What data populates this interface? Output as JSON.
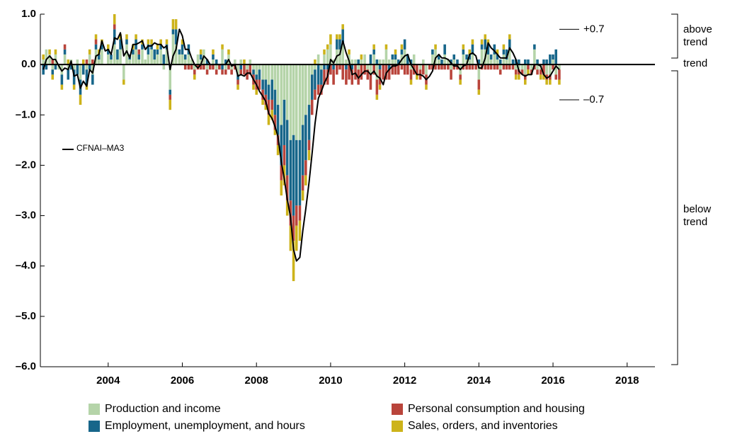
{
  "chart_data": {
    "type": "bar",
    "xlim": [
      2002.17,
      2018.75
    ],
    "xticks": [
      2004,
      2006,
      2008,
      2010,
      2012,
      2014,
      2016,
      2018
    ],
    "ylim": [
      -6,
      1
    ],
    "yticks": [
      {
        "value": 1,
        "label": "1.0"
      },
      {
        "value": 0,
        "label": "0.0"
      },
      {
        "value": -1,
        "label": "–1.0"
      },
      {
        "value": -2,
        "label": "–2.0"
      },
      {
        "value": -3,
        "label": "–3.0"
      },
      {
        "value": -4,
        "label": "–4.0"
      },
      {
        "value": -5,
        "label": "–5.0"
      },
      {
        "value": -6,
        "label": "–6.0"
      }
    ],
    "reference_lines": [
      {
        "value": 0.7,
        "label": "+0.7"
      },
      {
        "value": -0.7,
        "label": "–0.7"
      }
    ],
    "zones": [
      "above trend",
      "trend",
      "below trend"
    ],
    "x": [
      2002.25,
      2002.33,
      2002.42,
      2002.5,
      2002.58,
      2002.67,
      2002.75,
      2002.83,
      2002.92,
      2003,
      2003.08,
      2003.17,
      2003.25,
      2003.33,
      2003.42,
      2003.5,
      2003.58,
      2003.67,
      2003.75,
      2003.83,
      2003.92,
      2004,
      2004.08,
      2004.17,
      2004.25,
      2004.33,
      2004.42,
      2004.5,
      2004.58,
      2004.67,
      2004.75,
      2004.83,
      2004.92,
      2005,
      2005.08,
      2005.17,
      2005.25,
      2005.33,
      2005.42,
      2005.5,
      2005.58,
      2005.67,
      2005.75,
      2005.83,
      2005.92,
      2006,
      2006.08,
      2006.17,
      2006.25,
      2006.33,
      2006.42,
      2006.5,
      2006.58,
      2006.67,
      2006.75,
      2006.83,
      2006.92,
      2007,
      2007.08,
      2007.17,
      2007.25,
      2007.33,
      2007.42,
      2007.5,
      2007.58,
      2007.67,
      2007.75,
      2007.83,
      2007.92,
      2008,
      2008.08,
      2008.17,
      2008.25,
      2008.33,
      2008.42,
      2008.5,
      2008.58,
      2008.67,
      2008.75,
      2008.83,
      2008.92,
      2009,
      2009.08,
      2009.17,
      2009.25,
      2009.33,
      2009.42,
      2009.5,
      2009.58,
      2009.67,
      2009.75,
      2009.83,
      2009.92,
      2010,
      2010.08,
      2010.17,
      2010.25,
      2010.33,
      2010.42,
      2010.5,
      2010.58,
      2010.67,
      2010.75,
      2010.83,
      2010.92,
      2011,
      2011.08,
      2011.17,
      2011.25,
      2011.33,
      2011.42,
      2011.5,
      2011.58,
      2011.67,
      2011.75,
      2011.83,
      2011.92,
      2012,
      2012.08,
      2012.17,
      2012.25,
      2012.33,
      2012.42,
      2012.5,
      2012.58,
      2012.67,
      2012.75,
      2012.83,
      2012.92,
      2013,
      2013.08,
      2013.17,
      2013.25,
      2013.33,
      2013.42,
      2013.5,
      2013.58,
      2013.67,
      2013.75,
      2013.83,
      2013.92,
      2014,
      2014.08,
      2014.17,
      2014.25,
      2014.33,
      2014.42,
      2014.5,
      2014.58,
      2014.67,
      2014.75,
      2014.83,
      2014.92,
      2015,
      2015.08,
      2015.17,
      2015.25,
      2015.33,
      2015.42,
      2015.5,
      2015.58,
      2015.67,
      2015.75,
      2015.83,
      2015.92,
      2016,
      2016.08,
      2016.17
    ],
    "series": [
      {
        "name": "Production and income",
        "color": "#b5d4a9",
        "values": [
          0.1,
          0.3,
          0.2,
          -0.1,
          0.2,
          -0.1,
          -0.2,
          0.2,
          -0.1,
          0.1,
          -0.1,
          0.1,
          -0.3,
          0.0,
          -0.1,
          0.2,
          -0.2,
          0.3,
          0.1,
          0.3,
          0.0,
          0.2,
          0.1,
          0.4,
          0.1,
          0.3,
          -0.3,
          0.4,
          0.1,
          0.2,
          0.3,
          0.1,
          0.3,
          0.1,
          0.2,
          0.3,
          0.1,
          0.2,
          0.3,
          -0.1,
          0.3,
          -0.5,
          0.6,
          0.4,
          0.2,
          0.2,
          0.1,
          0.2,
          0.1,
          -0.1,
          0.2,
          0.1,
          0.3,
          -0.1,
          0.0,
          0.1,
          -0.1,
          0.0,
          0.3,
          -0.1,
          0.2,
          -0.1,
          0.1,
          -0.2,
          0.1,
          0.0,
          -0.1,
          0.1,
          -0.1,
          -0.2,
          -0.1,
          -0.3,
          -0.3,
          -0.4,
          -0.3,
          -0.5,
          -0.8,
          -1.2,
          -0.7,
          -1.1,
          -1.5,
          -1.4,
          -1.5,
          -1.5,
          -1.2,
          -1.0,
          -0.8,
          -0.2,
          -0.1,
          0.2,
          -0.1,
          0.2,
          0.3,
          0.4,
          0.1,
          0.3,
          0.3,
          0.4,
          0.1,
          0.2,
          0.1,
          0.1,
          -0.1,
          0.1,
          0.2,
          -0.1,
          -0.2,
          0.2,
          -0.3,
          0.1,
          0.1,
          0.3,
          0.1,
          0.1,
          0.1,
          0.0,
          0.2,
          0.3,
          0.0,
          -0.1,
          0.2,
          0.0,
          -0.1,
          0.1,
          -0.2,
          0.0,
          0.2,
          0.3,
          0.1,
          0.0,
          0.2,
          0.1,
          -0.1,
          0.1,
          0.0,
          -0.2,
          0.2,
          0.1,
          0.1,
          0.2,
          0.0,
          -0.3,
          0.3,
          0.3,
          0.2,
          0.1,
          0.2,
          0.1,
          -0.1,
          0.2,
          0.1,
          0.3,
          0.0,
          -0.1,
          -0.1,
          -0.1,
          -0.2,
          0.0,
          -0.1,
          0.3,
          -0.1,
          -0.1,
          0.0,
          -0.2,
          -0.2,
          0.1,
          -0.2,
          -0.1
        ]
      },
      {
        "name": "Employment, unemployment, and hours",
        "color": "#17668a",
        "values": [
          -0.2,
          -0.1,
          0.0,
          -0.1,
          -0.1,
          0.0,
          -0.2,
          0.1,
          -0.2,
          -0.1,
          -0.3,
          -0.2,
          -0.3,
          -0.2,
          -0.3,
          -0.1,
          -0.2,
          0.1,
          0.1,
          0.1,
          0.0,
          0.1,
          0.1,
          0.3,
          0.2,
          0.2,
          0.0,
          0.1,
          0.1,
          0.1,
          0.2,
          0.1,
          0.1,
          0.0,
          0.2,
          0.1,
          0.2,
          0.1,
          0.1,
          0.2,
          0.1,
          -0.1,
          0.1,
          0.3,
          0.1,
          0.2,
          0.1,
          0.2,
          0.0,
          0.0,
          0.0,
          0.1,
          0.0,
          0.1,
          0.0,
          0.1,
          0.1,
          0.0,
          -0.1,
          0.1,
          0.0,
          0.0,
          0.0,
          -0.1,
          -0.1,
          0.0,
          0.0,
          0.0,
          -0.1,
          -0.1,
          -0.2,
          -0.2,
          -0.3,
          -0.3,
          -0.4,
          -0.5,
          -0.6,
          -0.8,
          -0.9,
          -1.1,
          -1.2,
          -1.6,
          -1.3,
          -1.3,
          -1.0,
          -0.9,
          -0.7,
          -0.5,
          -0.4,
          -0.4,
          -0.3,
          -0.1,
          -0.1,
          0.0,
          -0.1,
          0.2,
          0.2,
          0.3,
          -0.1,
          0.0,
          -0.1,
          0.0,
          0.1,
          0.0,
          0.0,
          0.0,
          0.2,
          0.1,
          0.1,
          -0.1,
          0.0,
          0.0,
          -0.1,
          0.1,
          0.1,
          0.1,
          0.1,
          0.2,
          0.2,
          0.1,
          0.0,
          0.0,
          0.0,
          0.0,
          0.0,
          0.0,
          0.1,
          0.0,
          0.1,
          0.1,
          0.2,
          0.0,
          0.1,
          0.1,
          0.1,
          0.0,
          0.1,
          0.1,
          0.1,
          0.2,
          0.0,
          0.1,
          0.1,
          0.2,
          0.2,
          0.1,
          0.2,
          0.1,
          0.1,
          0.1,
          0.2,
          0.2,
          0.1,
          0.1,
          0.1,
          0.0,
          0.1,
          0.1,
          0.0,
          0.1,
          0.1,
          0.0,
          0.1,
          0.1,
          0.2,
          0.1,
          0.3,
          0.0
        ]
      },
      {
        "name": "Personal consumption and housing",
        "color": "#b9443b",
        "values": [
          0.0,
          0.0,
          0.0,
          0.1,
          0.0,
          0.0,
          0.0,
          0.1,
          0.0,
          0.0,
          0.0,
          0.0,
          0.0,
          0.0,
          0.1,
          0.0,
          0.1,
          0.1,
          0.0,
          0.0,
          0.0,
          0.0,
          0.0,
          0.1,
          0.0,
          0.0,
          0.0,
          0.0,
          0.0,
          0.0,
          0.0,
          0.1,
          0.0,
          0.0,
          0.0,
          0.0,
          0.0,
          0.0,
          0.0,
          0.0,
          0.0,
          -0.1,
          0.0,
          0.0,
          0.0,
          0.0,
          -0.1,
          -0.1,
          -0.1,
          -0.1,
          -0.1,
          -0.1,
          -0.1,
          -0.1,
          -0.1,
          -0.1,
          -0.1,
          -0.1,
          -0.1,
          -0.1,
          -0.1,
          -0.1,
          -0.1,
          -0.1,
          -0.1,
          -0.2,
          -0.2,
          -0.2,
          -0.2,
          -0.2,
          -0.2,
          -0.2,
          -0.2,
          -0.3,
          -0.2,
          -0.3,
          -0.2,
          -0.3,
          -0.4,
          -0.5,
          -0.5,
          -0.5,
          -0.4,
          -0.3,
          -0.3,
          -0.3,
          -0.2,
          -0.3,
          -0.2,
          -0.2,
          -0.2,
          -0.3,
          -0.3,
          -0.2,
          -0.3,
          -0.2,
          -0.1,
          -0.3,
          -0.3,
          -0.3,
          -0.3,
          -0.3,
          -0.3,
          -0.3,
          -0.2,
          -0.2,
          -0.3,
          -0.2,
          -0.3,
          -0.3,
          -0.3,
          -0.3,
          -0.2,
          -0.2,
          -0.2,
          -0.2,
          -0.1,
          -0.2,
          -0.2,
          -0.2,
          -0.2,
          -0.2,
          -0.2,
          -0.2,
          -0.2,
          -0.1,
          -0.1,
          -0.1,
          -0.1,
          -0.1,
          -0.1,
          -0.1,
          -0.2,
          -0.1,
          -0.1,
          -0.1,
          -0.1,
          -0.1,
          -0.1,
          -0.1,
          -0.1,
          -0.2,
          -0.1,
          -0.1,
          -0.1,
          -0.1,
          -0.1,
          -0.1,
          -0.1,
          -0.1,
          -0.1,
          -0.1,
          -0.1,
          -0.1,
          -0.1,
          -0.1,
          -0.1,
          -0.1,
          -0.1,
          -0.1,
          -0.1,
          -0.1,
          -0.2,
          -0.1,
          -0.1,
          -0.1,
          -0.1,
          -0.2
        ]
      },
      {
        "name": "Sales, orders, and inventories",
        "color": "#cdb31a",
        "values": [
          0.1,
          0.0,
          0.1,
          -0.1,
          0.1,
          0.0,
          -0.1,
          0.0,
          0.1,
          0.0,
          -0.1,
          0.0,
          -0.2,
          0.1,
          -0.1,
          0.1,
          0.0,
          0.1,
          0.1,
          0.1,
          0.0,
          0.1,
          0.0,
          0.2,
          0.0,
          0.1,
          -0.1,
          0.1,
          0.0,
          0.1,
          0.1,
          0.0,
          0.1,
          0.0,
          0.1,
          0.1,
          0.0,
          0.1,
          0.1,
          0.0,
          0.1,
          -0.2,
          0.2,
          0.2,
          0.0,
          0.1,
          0.0,
          0.0,
          0.0,
          -0.1,
          0.0,
          0.1,
          0.0,
          0.0,
          0.0,
          0.1,
          0.0,
          0.0,
          0.1,
          0.0,
          0.1,
          0.0,
          0.0,
          -0.1,
          0.0,
          0.1,
          0.0,
          0.0,
          -0.1,
          -0.1,
          0.0,
          -0.1,
          -0.1,
          -0.2,
          -0.2,
          -0.1,
          -0.2,
          -0.3,
          -0.4,
          -0.3,
          -0.5,
          -0.8,
          -0.5,
          -0.4,
          -0.2,
          -0.2,
          -0.2,
          0.0,
          0.1,
          0.0,
          0.0,
          0.1,
          0.1,
          0.2,
          0.0,
          0.1,
          0.1,
          0.1,
          0.0,
          0.1,
          0.0,
          0.0,
          0.0,
          0.1,
          0.0,
          0.0,
          0.0,
          0.1,
          -0.1,
          -0.1,
          0.0,
          0.1,
          0.0,
          0.0,
          0.1,
          0.0,
          0.1,
          0.0,
          0.0,
          -0.1,
          0.0,
          -0.1,
          0.0,
          0.0,
          -0.1,
          0.0,
          0.0,
          0.1,
          0.0,
          0.0,
          0.0,
          0.0,
          0.0,
          0.0,
          0.0,
          -0.1,
          0.1,
          0.0,
          0.1,
          0.1,
          0.0,
          -0.1,
          0.1,
          0.1,
          0.1,
          0.0,
          0.0,
          0.1,
          0.0,
          0.1,
          0.0,
          0.1,
          0.0,
          -0.1,
          -0.1,
          0.0,
          -0.1,
          -0.1,
          0.0,
          0.0,
          0.0,
          -0.1,
          -0.1,
          -0.1,
          -0.1,
          0.0,
          0.0,
          -0.1
        ]
      },
      {
        "name": "CFNAI–MA3",
        "type": "line",
        "color": "#000000",
        "values": [
          -0.1,
          0.1,
          0.17,
          0.1,
          0.1,
          -0.03,
          -0.13,
          -0.07,
          -0.1,
          0.07,
          -0.23,
          -0.2,
          -0.47,
          -0.33,
          -0.43,
          -0.1,
          -0.17,
          0.17,
          0.2,
          0.47,
          0.27,
          0.3,
          0.2,
          0.53,
          0.5,
          0.63,
          0.17,
          0.27,
          0.13,
          0.4,
          0.4,
          0.43,
          0.47,
          0.3,
          0.37,
          0.37,
          0.43,
          0.4,
          0.4,
          0.33,
          0.37,
          -0.1,
          0.17,
          0.3,
          0.7,
          0.57,
          0.3,
          0.3,
          0.13,
          0,
          -0.07,
          0,
          0.17,
          0.1,
          0,
          0,
          0,
          0,
          0,
          0,
          0.1,
          -0.03,
          0,
          -0.23,
          -0.2,
          -0.23,
          -0.17,
          -0.17,
          -0.3,
          -0.4,
          -0.53,
          -0.63,
          -0.73,
          -0.97,
          -1.07,
          -1.23,
          -1.43,
          -1.93,
          -2.27,
          -2.67,
          -3.03,
          -3.67,
          -3.9,
          -3.83,
          -3.3,
          -2.87,
          -2.33,
          -1.77,
          -1.17,
          -0.67,
          -0.53,
          -0.37,
          -0.23,
          0.1,
          0.03,
          0.17,
          0.2,
          0.47,
          0.23,
          0.07,
          -0.2,
          -0.17,
          -0.27,
          -0.2,
          -0.13,
          -0.13,
          -0.2,
          -0.13,
          -0.23,
          -0.27,
          -0.4,
          -0.17,
          -0.1,
          -0.03,
          -0.03,
          0,
          0.1,
          0.17,
          0.2,
          0,
          -0.1,
          -0.2,
          -0.2,
          -0.23,
          -0.3,
          -0.23,
          -0.13,
          0.13,
          0.2,
          0.13,
          0.13,
          0.1,
          0.03,
          -0.03,
          -0.03,
          -0.1,
          -0.03,
          0,
          0.2,
          0.23,
          0.17,
          -0.07,
          -0.07,
          0.13,
          0.43,
          0.33,
          0.27,
          0.2,
          0.13,
          0.13,
          0.13,
          0.33,
          0.23,
          0.1,
          -0.13,
          -0.2,
          -0.23,
          -0.2,
          -0.2,
          0,
          0,
          -0.03,
          -0.2,
          -0.27,
          -0.23,
          -0.13,
          -0.03,
          -0.1
        ]
      }
    ]
  }
}
